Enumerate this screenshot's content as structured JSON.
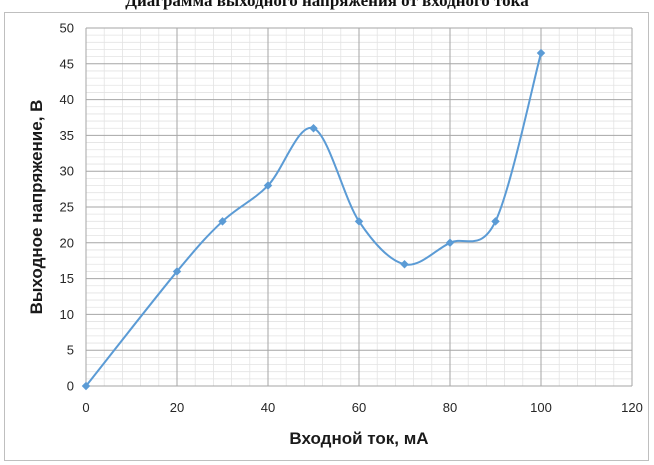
{
  "top_caption": "Диаграмма выходного напряжения от входного тока",
  "chart_data": {
    "type": "line",
    "smooth": true,
    "title": "",
    "xlabel": "Входной ток, мА",
    "ylabel": "Выходное напряжение, В",
    "xlim": [
      0,
      120
    ],
    "ylim": [
      0,
      50
    ],
    "x_ticks": [
      0,
      20,
      40,
      60,
      80,
      100,
      120
    ],
    "y_ticks": [
      0,
      5,
      10,
      15,
      20,
      25,
      30,
      35,
      40,
      45,
      50
    ],
    "grid": true,
    "minor_grid": true,
    "legend": "none",
    "series": [
      {
        "color": "#5b9bd5",
        "x": [
          0,
          20,
          30,
          40,
          50,
          60,
          70,
          80,
          90,
          100
        ],
        "y": [
          0,
          16,
          23,
          28,
          36,
          23,
          17,
          20,
          23,
          46.5
        ]
      }
    ]
  }
}
